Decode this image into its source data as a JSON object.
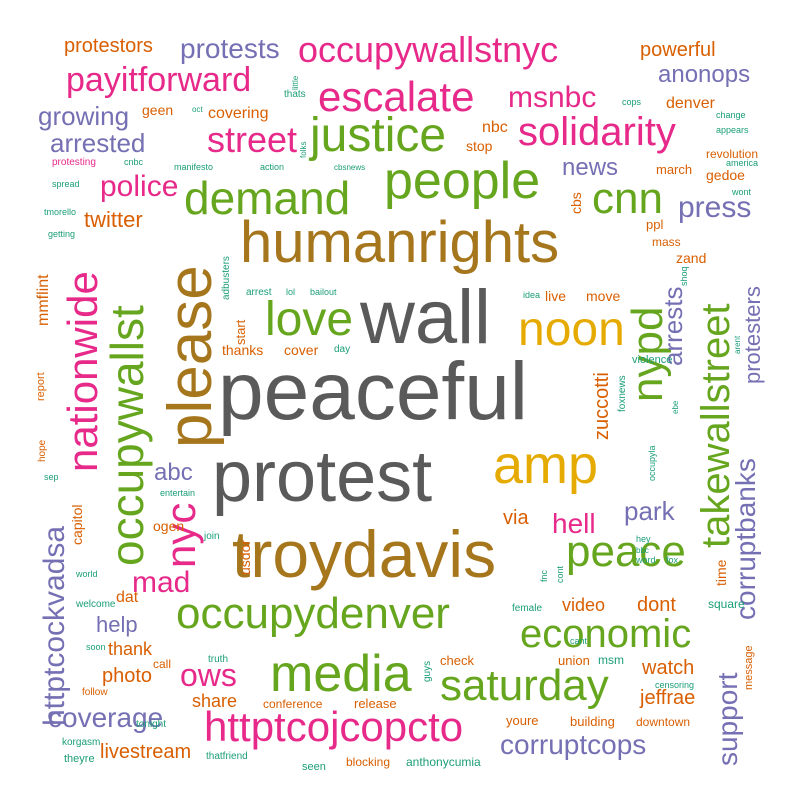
{
  "palette": {
    "grey": "#5a5a5a",
    "brown": "#a6761d",
    "green": "#66a61e",
    "pink": "#e7298a",
    "purple": "#7570b3",
    "orange": "#d95f02",
    "teal": "#1b9e77",
    "gold": "#e6ab02"
  },
  "words": [
    {
      "text": "peaceful",
      "color": "grey"
    },
    {
      "text": "protest",
      "color": "grey"
    },
    {
      "text": "wall",
      "color": "grey"
    },
    {
      "text": "troydavis",
      "color": "brown"
    },
    {
      "text": "please",
      "color": "brown"
    },
    {
      "text": "humanrights",
      "color": "brown"
    },
    {
      "text": "people",
      "color": "green"
    },
    {
      "text": "justice",
      "color": "green"
    },
    {
      "text": "amp",
      "color": "gold"
    },
    {
      "text": "noon",
      "color": "gold"
    },
    {
      "text": "demand",
      "color": "green"
    },
    {
      "text": "occupywallst",
      "color": "green"
    },
    {
      "text": "occupywallstnyc",
      "color": "pink"
    },
    {
      "text": "escalate",
      "color": "pink"
    },
    {
      "text": "solidarity",
      "color": "pink"
    },
    {
      "text": "nationwide",
      "color": "pink"
    },
    {
      "text": "nyc",
      "color": "pink"
    },
    {
      "text": "nypd",
      "color": "green"
    },
    {
      "text": "takewallstreet",
      "color": "green"
    },
    {
      "text": "love",
      "color": "green"
    },
    {
      "text": "cnn",
      "color": "green"
    },
    {
      "text": "peace",
      "color": "green"
    },
    {
      "text": "occupydenver",
      "color": "green"
    },
    {
      "text": "media",
      "color": "green"
    },
    {
      "text": "saturday",
      "color": "green"
    },
    {
      "text": "economic",
      "color": "green"
    },
    {
      "text": "httptcojcopcto",
      "color": "pink"
    },
    {
      "text": "street",
      "color": "pink"
    },
    {
      "text": "payitforward",
      "color": "pink"
    },
    {
      "text": "protests",
      "color": "purple"
    },
    {
      "text": "msnbc",
      "color": "pink"
    },
    {
      "text": "police",
      "color": "pink"
    },
    {
      "text": "press",
      "color": "purple"
    },
    {
      "text": "httptcockvadsa",
      "color": "purple"
    },
    {
      "text": "corruptbanks",
      "color": "purple"
    },
    {
      "text": "corruptcops",
      "color": "purple"
    },
    {
      "text": "coverage",
      "color": "purple"
    },
    {
      "text": "support",
      "color": "purple"
    },
    {
      "text": "arrested",
      "color": "purple"
    },
    {
      "text": "growing",
      "color": "purple"
    },
    {
      "text": "anonops",
      "color": "purple"
    },
    {
      "text": "arrests",
      "color": "purple"
    },
    {
      "text": "protesters",
      "color": "purple"
    },
    {
      "text": "protestors",
      "color": "orange"
    },
    {
      "text": "powerful",
      "color": "orange"
    },
    {
      "text": "news",
      "color": "purple"
    },
    {
      "text": "twitter",
      "color": "orange"
    },
    {
      "text": "hell",
      "color": "pink"
    },
    {
      "text": "mad",
      "color": "pink"
    },
    {
      "text": "ows",
      "color": "pink"
    },
    {
      "text": "abc",
      "color": "purple"
    },
    {
      "text": "park",
      "color": "purple"
    },
    {
      "text": "help",
      "color": "purple"
    },
    {
      "text": "via",
      "color": "orange"
    },
    {
      "text": "video",
      "color": "orange"
    },
    {
      "text": "dont",
      "color": "orange"
    },
    {
      "text": "watch",
      "color": "orange"
    },
    {
      "text": "photo",
      "color": "orange"
    },
    {
      "text": "thank",
      "color": "orange"
    },
    {
      "text": "share",
      "color": "orange"
    },
    {
      "text": "livestream",
      "color": "orange"
    },
    {
      "text": "jeffrae",
      "color": "orange"
    },
    {
      "text": "zuccotti",
      "color": "orange"
    },
    {
      "text": "covering",
      "color": "orange"
    },
    {
      "text": "nbc",
      "color": "orange"
    },
    {
      "text": "denver",
      "color": "orange"
    },
    {
      "text": "geen",
      "color": "orange"
    },
    {
      "text": "stop",
      "color": "orange"
    },
    {
      "text": "gedoe",
      "color": "orange"
    },
    {
      "text": "zand",
      "color": "orange"
    },
    {
      "text": "ppl",
      "color": "orange"
    },
    {
      "text": "mass",
      "color": "orange"
    },
    {
      "text": "march",
      "color": "orange"
    },
    {
      "text": "revolution",
      "color": "orange"
    },
    {
      "text": "cbs",
      "color": "orange"
    },
    {
      "text": "mmflint",
      "color": "orange"
    },
    {
      "text": "thanks",
      "color": "orange"
    },
    {
      "text": "cover",
      "color": "orange"
    },
    {
      "text": "live",
      "color": "orange"
    },
    {
      "text": "move",
      "color": "orange"
    },
    {
      "text": "ogen",
      "color": "orange"
    },
    {
      "text": "dat",
      "color": "orange"
    },
    {
      "text": "capitol",
      "color": "orange"
    },
    {
      "text": "usdor",
      "color": "orange"
    },
    {
      "text": "start",
      "color": "orange"
    },
    {
      "text": "time",
      "color": "orange"
    },
    {
      "text": "square",
      "color": "teal"
    },
    {
      "text": "message",
      "color": "orange"
    },
    {
      "text": "union",
      "color": "orange"
    },
    {
      "text": "msm",
      "color": "teal"
    },
    {
      "text": "check",
      "color": "orange"
    },
    {
      "text": "release",
      "color": "orange"
    },
    {
      "text": "conference",
      "color": "orange"
    },
    {
      "text": "building",
      "color": "orange"
    },
    {
      "text": "downtown",
      "color": "orange"
    },
    {
      "text": "youre",
      "color": "orange"
    },
    {
      "text": "blocking",
      "color": "orange"
    },
    {
      "text": "anthonycumia",
      "color": "teal"
    },
    {
      "text": "seen",
      "color": "teal"
    },
    {
      "text": "theyre",
      "color": "teal"
    },
    {
      "text": "thatfriend",
      "color": "teal"
    },
    {
      "text": "korgasm",
      "color": "teal"
    },
    {
      "text": "tonight",
      "color": "teal"
    },
    {
      "text": "follow",
      "color": "orange"
    },
    {
      "text": "call",
      "color": "orange"
    },
    {
      "text": "truth",
      "color": "teal"
    },
    {
      "text": "guys",
      "color": "teal"
    },
    {
      "text": "censoring",
      "color": "teal"
    },
    {
      "text": "female",
      "color": "teal"
    },
    {
      "text": "cant",
      "color": "teal"
    },
    {
      "text": "cont",
      "color": "teal"
    },
    {
      "text": "fnc",
      "color": "teal"
    },
    {
      "text": "welcome",
      "color": "teal"
    },
    {
      "text": "world",
      "color": "teal"
    },
    {
      "text": "soon",
      "color": "teal"
    },
    {
      "text": "join",
      "color": "teal"
    },
    {
      "text": "entertain",
      "color": "teal"
    },
    {
      "text": "sep",
      "color": "teal"
    },
    {
      "text": "hope",
      "color": "orange"
    },
    {
      "text": "report",
      "color": "orange"
    },
    {
      "text": "violence",
      "color": "teal"
    },
    {
      "text": "foxnews",
      "color": "teal"
    },
    {
      "text": "occupyla",
      "color": "teal"
    },
    {
      "text": "ebe",
      "color": "teal"
    },
    {
      "text": "hey",
      "color": "teal"
    },
    {
      "text": "bbc",
      "color": "teal"
    },
    {
      "text": "word",
      "color": "teal"
    },
    {
      "text": "fox",
      "color": "teal"
    },
    {
      "text": "arent",
      "color": "teal"
    },
    {
      "text": "shoq",
      "color": "teal"
    },
    {
      "text": "idea",
      "color": "teal"
    },
    {
      "text": "arrest",
      "color": "teal"
    },
    {
      "text": "lol",
      "color": "teal"
    },
    {
      "text": "bailout",
      "color": "teal"
    },
    {
      "text": "adbusters",
      "color": "teal"
    },
    {
      "text": "day",
      "color": "teal"
    },
    {
      "text": "getting",
      "color": "teal"
    },
    {
      "text": "tmorello",
      "color": "teal"
    },
    {
      "text": "spread",
      "color": "teal"
    },
    {
      "text": "protesting",
      "color": "pink"
    },
    {
      "text": "cnbc",
      "color": "teal"
    },
    {
      "text": "manifesto",
      "color": "teal"
    },
    {
      "text": "oct",
      "color": "teal"
    },
    {
      "text": "action",
      "color": "teal"
    },
    {
      "text": "folks",
      "color": "teal"
    },
    {
      "text": "cbsnews",
      "color": "teal"
    },
    {
      "text": "little",
      "color": "teal"
    },
    {
      "text": "thats",
      "color": "teal"
    },
    {
      "text": "cops",
      "color": "teal"
    },
    {
      "text": "change",
      "color": "teal"
    },
    {
      "text": "appears",
      "color": "teal"
    },
    {
      "text": "america",
      "color": "teal"
    },
    {
      "text": "wont",
      "color": "teal"
    }
  ]
}
